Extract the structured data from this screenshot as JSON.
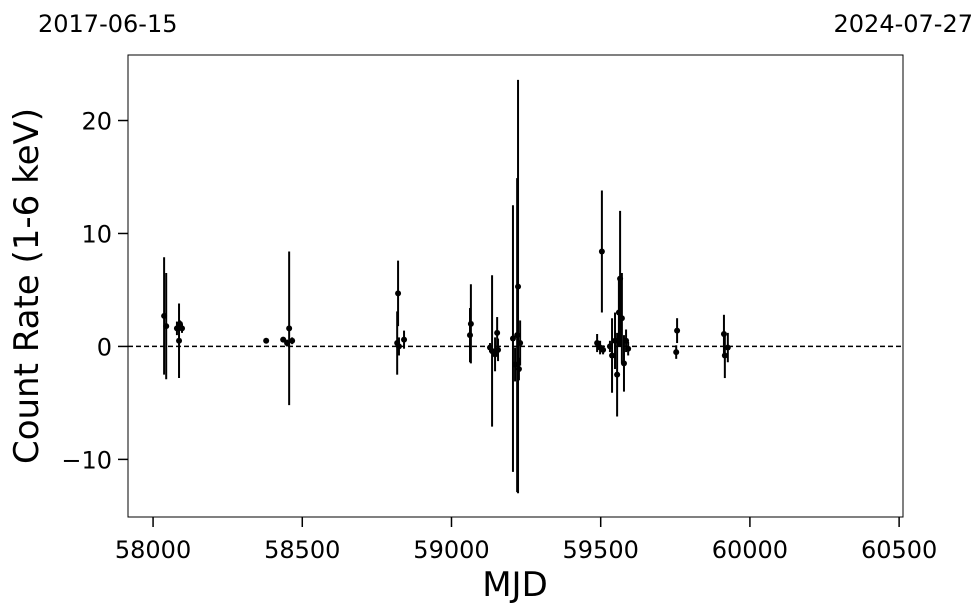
{
  "chart_data": {
    "type": "errorbar",
    "xlabel": "MJD",
    "ylabel": "Count Rate (1-6 keV)",
    "date_labels": [
      "2017-06-15",
      "2024-07-27"
    ],
    "xlim": [
      57916,
      60513
    ],
    "ylim": [
      -15.1,
      25.8
    ],
    "xticks": [
      58000,
      58500,
      59000,
      59500,
      60000,
      60500
    ],
    "yticks": [
      {
        "value": -10,
        "label": "−10"
      },
      0,
      10,
      20
    ],
    "hline": 0,
    "color": "#000000",
    "x": [
      58037,
      58044,
      58080,
      58087,
      58090,
      58097,
      58379,
      58436,
      58449,
      58456,
      58466,
      58818,
      58821,
      58824,
      58841,
      59062,
      59065,
      59129,
      59136,
      59146,
      59153,
      59156,
      59206,
      59213,
      59220,
      59223,
      59226,
      59230,
      59488,
      59498,
      59504,
      59508,
      59531,
      59538,
      59548,
      59555,
      59561,
      59565,
      59571,
      59578,
      59585,
      59592,
      59753,
      59756,
      59913,
      59916,
      59926
    ],
    "values": [
      2.7,
      1.8,
      1.6,
      0.5,
      2.0,
      1.6,
      0.5,
      0.6,
      0.3,
      1.6,
      0.5,
      0.3,
      4.7,
      0.0,
      0.6,
      1.0,
      2.0,
      -0.1,
      -0.4,
      -0.7,
      1.2,
      -0.3,
      0.7,
      -1.6,
      1.0,
      5.3,
      -2.0,
      0.3,
      0.3,
      -0.1,
      8.4,
      -0.3,
      0.0,
      -0.8,
      0.5,
      -2.5,
      3.0,
      6.0,
      2.5,
      -1.5,
      0.5,
      -0.2,
      -0.5,
      1.4,
      1.1,
      -0.8,
      -0.1
    ],
    "errors": [
      5.2,
      4.7,
      0.6,
      3.3,
      0.3,
      0.4,
      0.2,
      0.2,
      0.3,
      6.8,
      0.3,
      2.8,
      2.9,
      0.8,
      0.8,
      2.4,
      3.5,
      0.4,
      6.7,
      1.5,
      1.4,
      1.0,
      11.8,
      1.5,
      13.9,
      18.3,
      1.0,
      2.0,
      0.8,
      0.6,
      5.4,
      0.4,
      0.5,
      3.3,
      2.5,
      3.7,
      3.0,
      6.0,
      4.0,
      2.5,
      1.0,
      0.6,
      0.6,
      1.1,
      1.7,
      2.0,
      1.3
    ]
  }
}
